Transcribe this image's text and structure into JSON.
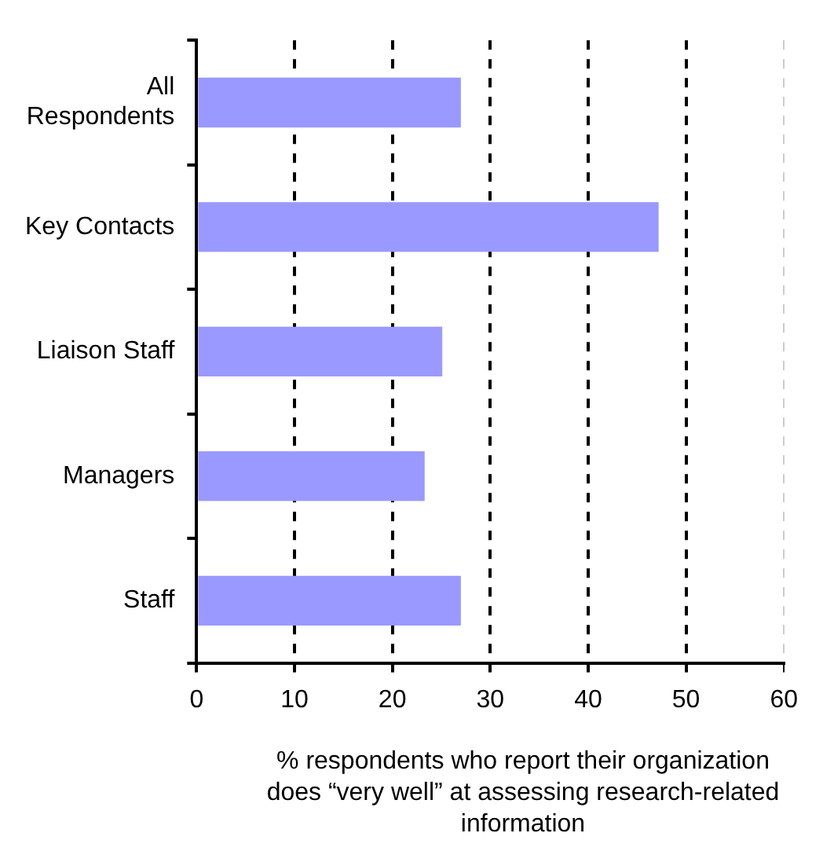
{
  "chart_data": {
    "type": "bar",
    "orientation": "horizontal",
    "categories": [
      "All Respondents",
      "Key Contacts",
      "Liaison Staff",
      "Managers",
      "Staff"
    ],
    "values": [
      27,
      47.2,
      25.1,
      23.3,
      27
    ],
    "color": "#9999ff",
    "xlim": [
      0,
      60
    ],
    "xticks": [
      0,
      10,
      20,
      30,
      40,
      50,
      60
    ],
    "xlabel": "% respondents who report their organization does “very well” at assessing research-related information",
    "grid": "x",
    "legend": false
  }
}
